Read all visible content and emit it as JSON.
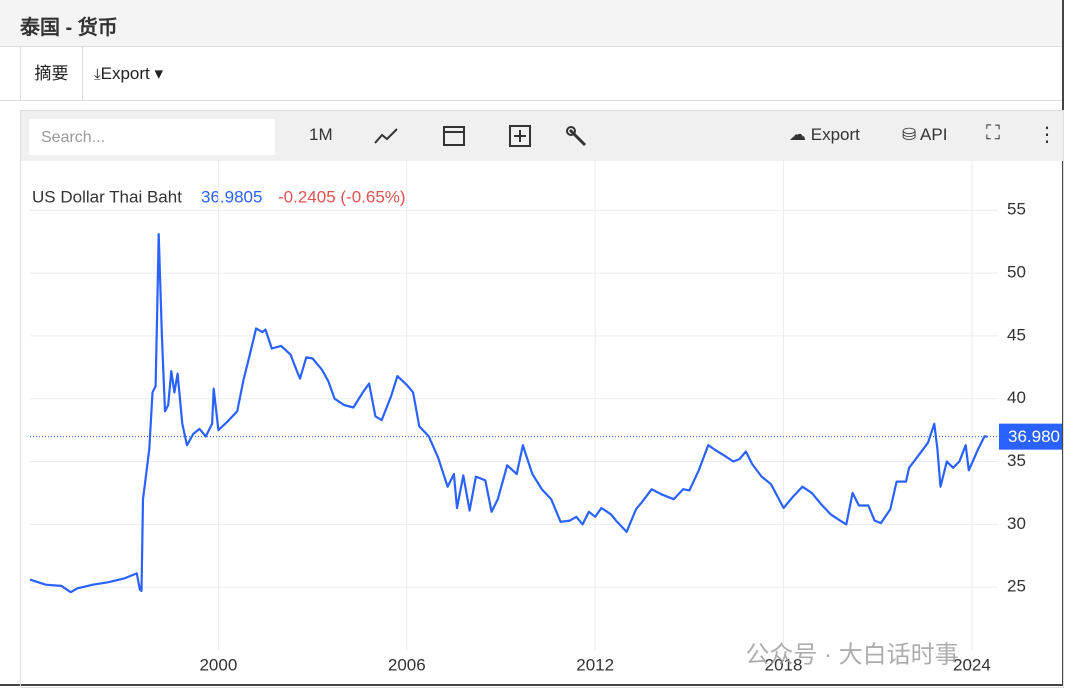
{
  "header": {
    "title": "泰国 - 货币"
  },
  "tabs": [
    "摘要",
    "Export"
  ],
  "toolbar": {
    "search": "Search...",
    "range": "1M",
    "export": "Export",
    "api": "API"
  },
  "watermark": "公众号 · 大白话时事",
  "chart_data": {
    "type": "line",
    "x": [
      1994.0,
      1994.5,
      1995.0,
      1995.3,
      1995.5,
      1996.0,
      1996.5,
      1997.0,
      1997.4,
      1997.5,
      1997.55,
      1997.6,
      1997.8,
      1997.9,
      1998.0,
      1998.05,
      1998.1,
      1998.2,
      1998.3,
      1998.4,
      1998.5,
      1998.6,
      1998.7,
      1998.85,
      1999.0,
      1999.2,
      1999.4,
      1999.6,
      1999.8,
      1999.85,
      2000.0,
      2000.3,
      2000.6,
      2000.8,
      2001.0,
      2001.2,
      2001.4,
      2001.5,
      2001.7,
      2002.0,
      2002.3,
      2002.5,
      2002.6,
      2002.8,
      2003.0,
      2003.3,
      2003.5,
      2003.7,
      2004.0,
      2004.3,
      2004.6,
      2004.8,
      2005.0,
      2005.2,
      2005.5,
      2005.7,
      2006.0,
      2006.2,
      2006.4,
      2006.7,
      2007.0,
      2007.3,
      2007.5,
      2007.6,
      2007.8,
      2008.0,
      2008.2,
      2008.5,
      2008.7,
      2008.9,
      2009.2,
      2009.5,
      2009.7,
      2009.8,
      2010.0,
      2010.3,
      2010.6,
      2010.9,
      2011.2,
      2011.4,
      2011.6,
      2011.8,
      2012.0,
      2012.2,
      2012.5,
      2012.7,
      2013.0,
      2013.3,
      2013.5,
      2013.8,
      2014.1,
      2014.5,
      2014.8,
      2015.0,
      2015.3,
      2015.6,
      2015.9,
      2016.1,
      2016.4,
      2016.6,
      2016.8,
      2017.0,
      2017.3,
      2017.6,
      2018.0,
      2018.3,
      2018.6,
      2018.9,
      2019.2,
      2019.5,
      2019.8,
      2020.0,
      2020.2,
      2020.4,
      2020.7,
      2020.9,
      2021.1,
      2021.4,
      2021.6,
      2021.9,
      2022.0,
      2022.3,
      2022.6,
      2022.8,
      2022.9,
      2023.0,
      2023.2,
      2023.4,
      2023.6,
      2023.8,
      2023.9,
      2024.2,
      2024.4,
      2024.5
    ],
    "series": [
      {
        "name": "US Dollar Thai Baht",
        "color": "#2962ff",
        "values": [
          25.6,
          25.2,
          25.1,
          24.6,
          24.9,
          25.2,
          25.4,
          25.7,
          26.1,
          24.8,
          24.7,
          32,
          36,
          40.5,
          41,
          47,
          53.1,
          45,
          39,
          39.5,
          42.2,
          40.5,
          42,
          38,
          36.3,
          37.2,
          37.6,
          37.0,
          38,
          40.8,
          37.5,
          38.2,
          39,
          41.5,
          43.5,
          45.6,
          45.3,
          45.5,
          44.0,
          44.2,
          43.5,
          42.2,
          41.6,
          43.3,
          43.2,
          42.3,
          41.4,
          40.0,
          39.5,
          39.3,
          40.5,
          41.2,
          38.6,
          38.3,
          40.2,
          41.8,
          41.1,
          40.5,
          37.8,
          37.0,
          35.3,
          33.0,
          34.0,
          31.3,
          33.9,
          31.1,
          33.8,
          33.5,
          31.0,
          32.0,
          34.7,
          34.0,
          36.3,
          35.5,
          34.0,
          32.8,
          32.0,
          30.2,
          30.3,
          30.6,
          30.0,
          31.0,
          30.6,
          31.3,
          30.8,
          30.2,
          29.4,
          31.2,
          31.8,
          32.8,
          32.4,
          32.0,
          32.8,
          32.7,
          34.3,
          36.3,
          35.8,
          35.5,
          35.0,
          35.2,
          35.8,
          34.8,
          33.8,
          33.2,
          31.3,
          32.2,
          33.0,
          32.5,
          31.6,
          30.8,
          30.3,
          30.0,
          32.5,
          31.5,
          31.5,
          30.3,
          30.1,
          31.2,
          33.4,
          33.4,
          34.5,
          35.5,
          36.5,
          38.0,
          36.0,
          33.0,
          35.0,
          34.5,
          35.0,
          36.3,
          34.3,
          36.0,
          37.0,
          36.98
        ]
      }
    ],
    "last_value": 36.9805,
    "last_value_label": "36.980",
    "change": "-0.2405 (-0.65%)",
    "change_color": "#e05252",
    "xlim": [
      1994.0,
      2024.83
    ],
    "xticks": [
      2000,
      2006,
      2012,
      2018,
      2024
    ],
    "ylim": [
      20,
      59
    ],
    "yticks": [
      25,
      30,
      35,
      40,
      45,
      50,
      55
    ],
    "grid": true
  }
}
